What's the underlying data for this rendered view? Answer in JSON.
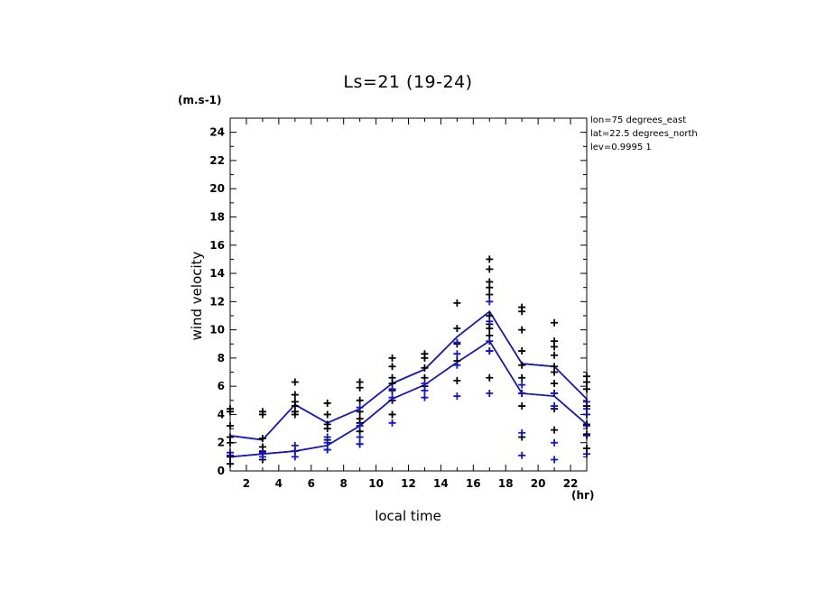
{
  "chart_data": {
    "type": "line",
    "title": "Ls=21 (19-24)",
    "xlabel": "local time",
    "ylabel": "wind velocity",
    "x_unit": "(hr)",
    "y_unit": "(m.s-1)",
    "annotations": [
      "lon=75 degrees_east",
      "lat=22.5 degrees_north",
      "lev=0.9995 1"
    ],
    "xlim": [
      1,
      23
    ],
    "ylim": [
      0,
      25
    ],
    "x_ticks": [
      2,
      4,
      6,
      8,
      10,
      12,
      14,
      16,
      18,
      20,
      22
    ],
    "y_ticks": [
      0,
      2,
      4,
      6,
      8,
      10,
      12,
      14,
      16,
      18,
      20,
      22,
      24
    ],
    "grid": false,
    "colors": {
      "black": "#000000",
      "blue": "#1414c8"
    },
    "series": [
      {
        "color": "black",
        "style": "line",
        "x": [
          1,
          3,
          5,
          7,
          9,
          11,
          13,
          15,
          17,
          19,
          21,
          23
        ],
        "values": [
          2.5,
          2.2,
          4.7,
          3.4,
          4.4,
          6.2,
          7.2,
          9.5,
          11.3,
          7.6,
          7.4,
          5.1
        ]
      },
      {
        "color": "black",
        "style": "line",
        "x": [
          1,
          3,
          5,
          7,
          9,
          11,
          13,
          15,
          17,
          19,
          21,
          23
        ],
        "values": [
          1.0,
          1.2,
          1.4,
          1.8,
          3.2,
          5.1,
          6.1,
          7.7,
          9.2,
          5.5,
          5.3,
          3.3
        ]
      },
      {
        "color": "black",
        "style": "markers",
        "points": [
          [
            1,
            0.5
          ],
          [
            1,
            1.0
          ],
          [
            1,
            2.0
          ],
          [
            1,
            2.4
          ],
          [
            1,
            3.2
          ],
          [
            1,
            4.2
          ],
          [
            1,
            4.4
          ],
          [
            3,
            0.8
          ],
          [
            3,
            1.4
          ],
          [
            3,
            1.7
          ],
          [
            3,
            2.3
          ],
          [
            3,
            4.0
          ],
          [
            3,
            4.2
          ],
          [
            5,
            1.4
          ],
          [
            5,
            4.0
          ],
          [
            5,
            4.2
          ],
          [
            5,
            4.6
          ],
          [
            5,
            4.9
          ],
          [
            5,
            5.4
          ],
          [
            5,
            6.3
          ],
          [
            7,
            1.5
          ],
          [
            7,
            2.2
          ],
          [
            7,
            3.0
          ],
          [
            7,
            3.3
          ],
          [
            7,
            4.0
          ],
          [
            7,
            4.8
          ],
          [
            9,
            1.9
          ],
          [
            9,
            2.8
          ],
          [
            9,
            3.4
          ],
          [
            9,
            3.7
          ],
          [
            9,
            4.2
          ],
          [
            9,
            5.0
          ],
          [
            9,
            5.9
          ],
          [
            9,
            6.3
          ],
          [
            11,
            4.0
          ],
          [
            11,
            5.0
          ],
          [
            11,
            5.7
          ],
          [
            11,
            6.2
          ],
          [
            11,
            6.6
          ],
          [
            11,
            7.4
          ],
          [
            11,
            8.0
          ],
          [
            13,
            6.0
          ],
          [
            13,
            6.6
          ],
          [
            13,
            7.3
          ],
          [
            13,
            8.0
          ],
          [
            13,
            8.3
          ],
          [
            15,
            6.4
          ],
          [
            15,
            7.8
          ],
          [
            15,
            9.0
          ],
          [
            15,
            10.1
          ],
          [
            15,
            11.9
          ],
          [
            17,
            6.6
          ],
          [
            17,
            8.5
          ],
          [
            17,
            9.6
          ],
          [
            17,
            10.1
          ],
          [
            17,
            10.4
          ],
          [
            17,
            11.0
          ],
          [
            17,
            12.5
          ],
          [
            17,
            13.0
          ],
          [
            17,
            13.4
          ],
          [
            17,
            14.3
          ],
          [
            17,
            15.0
          ],
          [
            19,
            2.4
          ],
          [
            19,
            4.6
          ],
          [
            19,
            5.5
          ],
          [
            19,
            6.6
          ],
          [
            19,
            7.5
          ],
          [
            19,
            8.5
          ],
          [
            19,
            10.0
          ],
          [
            19,
            11.3
          ],
          [
            19,
            11.6
          ],
          [
            21,
            2.9
          ],
          [
            21,
            4.4
          ],
          [
            21,
            5.5
          ],
          [
            21,
            6.2
          ],
          [
            21,
            7.0
          ],
          [
            21,
            7.4
          ],
          [
            21,
            8.2
          ],
          [
            21,
            8.8
          ],
          [
            21,
            9.2
          ],
          [
            21,
            10.5
          ],
          [
            23,
            1.6
          ],
          [
            23,
            2.6
          ],
          [
            23,
            3.3
          ],
          [
            23,
            4.6
          ],
          [
            23,
            5.8
          ],
          [
            23,
            6.3
          ],
          [
            23,
            6.7
          ]
        ]
      },
      {
        "color": "blue",
        "style": "line",
        "x": [
          1,
          3,
          5,
          7,
          9,
          11,
          13,
          15,
          17,
          19,
          21,
          23
        ],
        "values": [
          2.5,
          2.2,
          4.7,
          3.4,
          4.4,
          6.2,
          7.2,
          9.5,
          11.3,
          7.6,
          7.4,
          5.1
        ]
      },
      {
        "color": "blue",
        "style": "line",
        "x": [
          1,
          3,
          5,
          7,
          9,
          11,
          13,
          15,
          17,
          19,
          21,
          23
        ],
        "values": [
          1.0,
          1.2,
          1.4,
          1.8,
          3.2,
          5.1,
          6.1,
          7.7,
          9.2,
          5.5,
          5.3,
          3.3
        ]
      },
      {
        "color": "blue",
        "style": "markers",
        "points": [
          [
            1,
            1.1
          ],
          [
            1,
            1.3
          ],
          [
            3,
            1.0
          ],
          [
            3,
            1.3
          ],
          [
            5,
            1.0
          ],
          [
            5,
            1.4
          ],
          [
            5,
            1.8
          ],
          [
            7,
            1.5
          ],
          [
            7,
            2.0
          ],
          [
            7,
            2.4
          ],
          [
            9,
            1.9
          ],
          [
            9,
            2.4
          ],
          [
            9,
            3.2
          ],
          [
            9,
            4.5
          ],
          [
            11,
            3.4
          ],
          [
            11,
            5.2
          ],
          [
            11,
            5.8
          ],
          [
            13,
            5.2
          ],
          [
            13,
            5.7
          ],
          [
            13,
            6.2
          ],
          [
            15,
            5.3
          ],
          [
            15,
            7.5
          ],
          [
            15,
            8.3
          ],
          [
            15,
            9.1
          ],
          [
            17,
            5.5
          ],
          [
            17,
            8.5
          ],
          [
            17,
            9.2
          ],
          [
            17,
            10.6
          ],
          [
            17,
            12.0
          ],
          [
            19,
            1.1
          ],
          [
            19,
            2.7
          ],
          [
            19,
            5.5
          ],
          [
            19,
            6.1
          ],
          [
            21,
            0.8
          ],
          [
            21,
            2.0
          ],
          [
            21,
            4.6
          ],
          [
            21,
            5.5
          ],
          [
            23,
            1.2
          ],
          [
            23,
            2.5
          ],
          [
            23,
            3.2
          ],
          [
            23,
            4.0
          ],
          [
            23,
            4.4
          ],
          [
            23,
            4.9
          ]
        ]
      }
    ]
  }
}
